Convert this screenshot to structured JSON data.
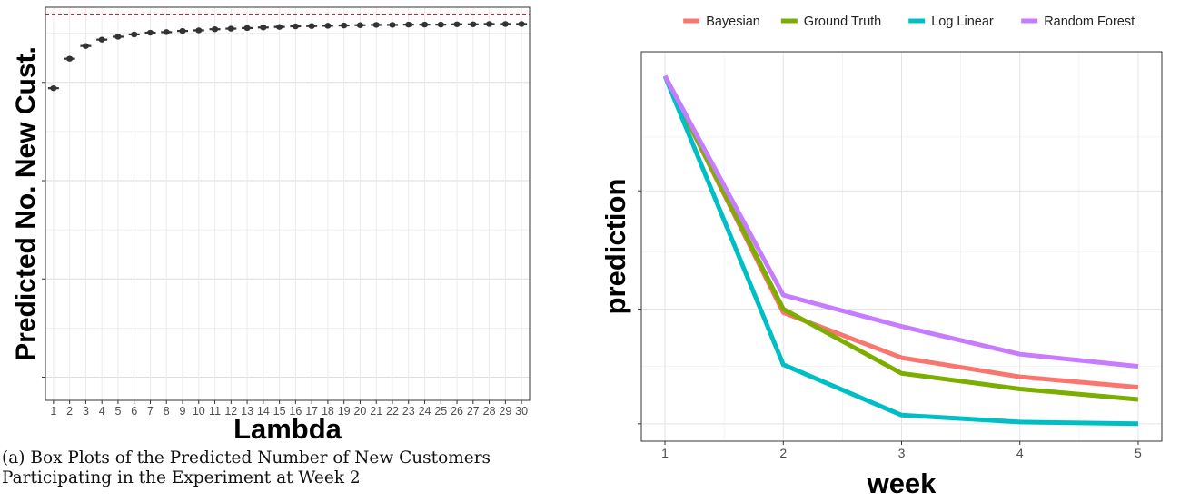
{
  "chart_data": [
    {
      "type": "box",
      "title": "",
      "xlabel": "Lambda",
      "ylabel": "Predicted No. New Cust.",
      "categories": [
        "1",
        "2",
        "3",
        "4",
        "5",
        "6",
        "7",
        "8",
        "9",
        "10",
        "11",
        "12",
        "13",
        "14",
        "15",
        "16",
        "17",
        "18",
        "19",
        "20",
        "21",
        "22",
        "23",
        "24",
        "25",
        "26",
        "27",
        "28",
        "29",
        "30"
      ],
      "values": [
        0.0,
        0.51,
        0.73,
        0.84,
        0.89,
        0.93,
        0.96,
        0.97,
        0.99,
        1.0,
        1.02,
        1.03,
        1.04,
        1.05,
        1.06,
        1.07,
        1.075,
        1.08,
        1.085,
        1.09,
        1.095,
        1.095,
        1.1,
        1.1,
        1.1,
        1.105,
        1.105,
        1.11,
        1.11,
        1.11
      ],
      "reference_line": 1.28,
      "ylim": [
        -5.4,
        1.4
      ],
      "y_ticks": [
        -5.0,
        -3.3,
        -1.6,
        0.1
      ],
      "y_tick_labels": [
        "",
        "",
        "",
        ""
      ],
      "reference_line_color": "#e41a1c",
      "grid": true,
      "caption": "(a) Box Plots of the Predicted Number of New Customers Participating in the Experiment at Week 2"
    },
    {
      "type": "line",
      "title": "",
      "xlabel": "week",
      "ylabel": "prediction",
      "x": [
        1,
        2,
        3,
        4,
        5
      ],
      "xlim": [
        0.8,
        5.2
      ],
      "ylim": [
        -0.05,
        1.07
      ],
      "y_ticks": [
        0.0,
        0.33,
        0.67
      ],
      "y_tick_labels": [
        "",
        "",
        ""
      ],
      "series": [
        {
          "name": "Bayesian",
          "color": "#F8766D",
          "values": [
            1.0,
            0.32,
            0.19,
            0.135,
            0.105
          ]
        },
        {
          "name": "Ground Truth",
          "color": "#7CAE00",
          "values": [
            1.0,
            0.33,
            0.145,
            0.1,
            0.07
          ]
        },
        {
          "name": "Log Linear",
          "color": "#00BFC4",
          "values": [
            1.0,
            0.17,
            0.025,
            0.005,
            0.0
          ]
        },
        {
          "name": "Random Forest",
          "color": "#C77CFF",
          "values": [
            1.0,
            0.37,
            0.28,
            0.2,
            0.165
          ]
        }
      ],
      "legend_position": "top",
      "grid": true
    }
  ]
}
